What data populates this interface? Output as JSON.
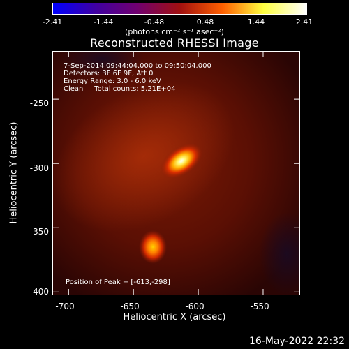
{
  "colorbar": {
    "ticks": [
      "-2.41",
      "-1.44",
      "-0.48",
      "0.48",
      "1.44",
      "2.41"
    ],
    "units": "(photons cm⁻² s⁻¹ asec⁻²)",
    "colors": [
      "#0000ff",
      "#4000a0",
      "#700070",
      "#a01010",
      "#ff6000",
      "#ffff40",
      "#ffffff"
    ]
  },
  "info": {
    "line1": "7-Sep-2014 09:44:04.000 to 09:50:04.000",
    "line2": "Detectors: 3F 6F 9F, Att 0",
    "line3": "Energy Range: 3.0 - 6.0 keV",
    "line4": "Clean     Total counts: 5.21E+04",
    "peak": "Position of Peak = [-613,-298]"
  },
  "timestamp": "16-May-2022 22:32",
  "chart_data": {
    "type": "heatmap",
    "title": "Reconstructed RHESSI Image",
    "xlabel": "Heliocentric X (arcsec)",
    "ylabel": "Heliocentric Y (arcsec)",
    "xlim": [
      -712,
      -522
    ],
    "ylim": [
      -402,
      -213
    ],
    "xticks": [
      "-700",
      "-650",
      "-600",
      "-550"
    ],
    "yticks": [
      "-250",
      "-300",
      "-350",
      "-400"
    ],
    "xtick_values": [
      -700,
      -650,
      -600,
      -550
    ],
    "ytick_values": [
      -250,
      -300,
      -350,
      -400
    ],
    "sources": [
      {
        "x": -613,
        "y": -298,
        "peak_level": 1.0
      },
      {
        "x": -635,
        "y": -365,
        "peak_level": 0.75
      }
    ],
    "grid": false
  }
}
